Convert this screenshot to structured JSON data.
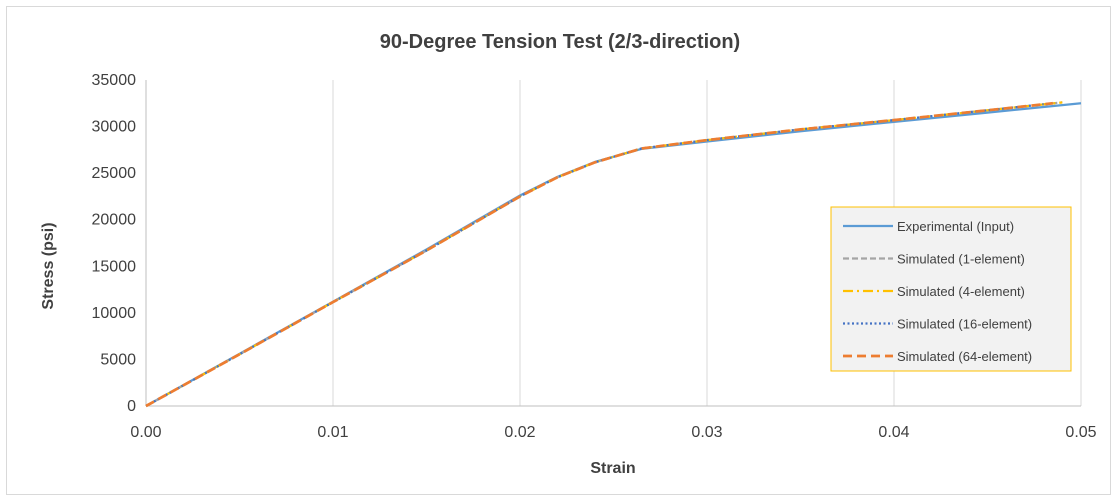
{
  "chart_data": {
    "type": "line",
    "title": "90-Degree Tension Test (2/3-direction)",
    "xlabel": "Strain",
    "ylabel": "Stress (psi)",
    "xlim": [
      0,
      0.05
    ],
    "ylim": [
      0,
      35000
    ],
    "x_ticks": [
      "0.00",
      "0.01",
      "0.02",
      "0.03",
      "0.04",
      "0.05"
    ],
    "y_ticks": [
      "0",
      "5000",
      "10000",
      "15000",
      "20000",
      "25000",
      "30000",
      "35000"
    ],
    "grid": "vertical",
    "legend_position": "right",
    "series": [
      {
        "name": "Experimental (Input)",
        "color": "#5b9bd5",
        "dash": "solid",
        "x": [
          0,
          0.005,
          0.01,
          0.015,
          0.02,
          0.022,
          0.024,
          0.0265,
          0.03,
          0.035,
          0.04,
          0.045,
          0.05
        ],
        "y": [
          0,
          5600,
          11200,
          16800,
          22600,
          24600,
          26200,
          27600,
          28400,
          29500,
          30500,
          31500,
          32500
        ]
      },
      {
        "name": "Simulated (1-element)",
        "color": "#a5a5a5",
        "dash": "dash",
        "x": [
          0,
          0.005,
          0.01,
          0.015,
          0.02,
          0.022,
          0.024,
          0.0265,
          0.03,
          0.035,
          0.04,
          0.045,
          0.049
        ],
        "y": [
          0,
          5550,
          11150,
          16700,
          22500,
          24550,
          26150,
          27650,
          28550,
          29700,
          30700,
          31750,
          32600
        ]
      },
      {
        "name": "Simulated (4-element)",
        "color": "#ffc000",
        "dash": "dashdot",
        "x": [
          0,
          0.005,
          0.01,
          0.015,
          0.02,
          0.022,
          0.024,
          0.0265,
          0.03,
          0.035,
          0.04,
          0.045,
          0.049
        ],
        "y": [
          0,
          5550,
          11150,
          16700,
          22500,
          24550,
          26150,
          27650,
          28550,
          29700,
          30700,
          31750,
          32600
        ]
      },
      {
        "name": "Simulated (16-element)",
        "color": "#4472c4",
        "dash": "dot",
        "x": [
          0,
          0.005,
          0.01,
          0.015,
          0.02,
          0.022,
          0.024,
          0.0265,
          0.03,
          0.035,
          0.04,
          0.045,
          0.048
        ],
        "y": [
          0,
          5550,
          11150,
          16700,
          22500,
          24550,
          26150,
          27650,
          28550,
          29700,
          30700,
          31750,
          32400
        ]
      },
      {
        "name": "Simulated (64-element)",
        "color": "#ed7d31",
        "dash": "longdash",
        "x": [
          0,
          0.005,
          0.01,
          0.015,
          0.02,
          0.022,
          0.024,
          0.0265,
          0.03,
          0.035,
          0.04,
          0.045,
          0.0485
        ],
        "y": [
          0,
          5550,
          11150,
          16700,
          22500,
          24550,
          26150,
          27650,
          28550,
          29700,
          30700,
          31750,
          32500
        ]
      }
    ]
  }
}
